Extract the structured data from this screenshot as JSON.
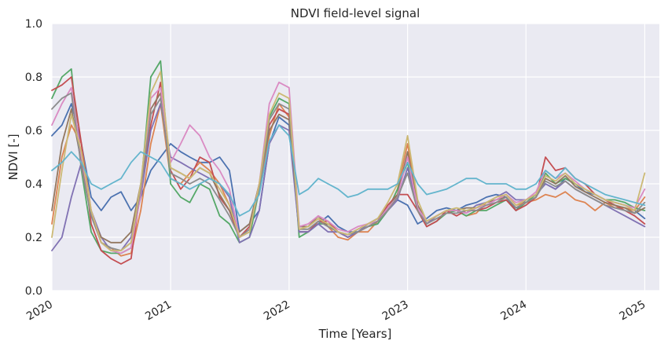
{
  "chart_data": {
    "type": "line",
    "title": "NDVI field-level signal",
    "xlabel": "Time [Years]",
    "ylabel": "NDVI [-]",
    "xlim": [
      "2020-01-01",
      "2025-02-15"
    ],
    "ylim": [
      0.0,
      1.0
    ],
    "x_ticks": [
      "2020",
      "2021",
      "2022",
      "2023",
      "2024",
      "2025"
    ],
    "y_ticks": [
      "0.0",
      "0.2",
      "0.4",
      "0.6",
      "0.8",
      "1.0"
    ],
    "grid": true,
    "legend": "none",
    "background": "#eaeaf2",
    "grid_color": "#ffffff",
    "palette": [
      "#4c72b0",
      "#dd8452",
      "#55a868",
      "#c44e52",
      "#8172b3",
      "#937860",
      "#da8bc3",
      "#8c8c8c",
      "#ccb974",
      "#64b5cd"
    ],
    "x": [
      "2020-01-01",
      "2020-02-01",
      "2020-03-01",
      "2020-04-01",
      "2020-05-01",
      "2020-06-01",
      "2020-07-01",
      "2020-08-01",
      "2020-09-01",
      "2020-10-01",
      "2020-11-01",
      "2020-12-01",
      "2021-01-01",
      "2021-02-01",
      "2021-03-01",
      "2021-04-01",
      "2021-05-01",
      "2021-06-01",
      "2021-07-01",
      "2021-08-01",
      "2021-09-01",
      "2021-10-01",
      "2021-11-01",
      "2021-12-01",
      "2022-01-01",
      "2022-02-01",
      "2022-03-01",
      "2022-04-01",
      "2022-05-01",
      "2022-06-01",
      "2022-07-01",
      "2022-08-01",
      "2022-09-01",
      "2022-10-01",
      "2022-11-01",
      "2022-12-01",
      "2023-01-01",
      "2023-02-01",
      "2023-03-01",
      "2023-04-01",
      "2023-05-01",
      "2023-06-01",
      "2023-07-01",
      "2023-08-01",
      "2023-09-01",
      "2023-10-01",
      "2023-11-01",
      "2023-12-01",
      "2024-01-01",
      "2024-02-01",
      "2024-03-01",
      "2024-04-01",
      "2024-05-01",
      "2024-06-01",
      "2024-07-01",
      "2024-08-01",
      "2024-09-01",
      "2024-10-01",
      "2024-11-01",
      "2024-12-01",
      "2025-01-01"
    ],
    "series": [
      {
        "values": [
          0.58,
          0.62,
          0.7,
          0.55,
          0.35,
          0.3,
          0.35,
          0.37,
          0.3,
          0.35,
          0.45,
          0.5,
          0.55,
          0.52,
          0.5,
          0.48,
          0.48,
          0.5,
          0.45,
          0.22,
          0.25,
          0.3,
          0.55,
          0.65,
          0.62,
          0.22,
          0.22,
          0.25,
          0.28,
          0.24,
          0.22,
          0.22,
          0.24,
          0.25,
          0.3,
          0.34,
          0.32,
          0.25,
          0.27,
          0.3,
          0.31,
          0.3,
          0.32,
          0.33,
          0.35,
          0.36,
          0.35,
          0.3,
          0.34,
          0.36,
          0.4,
          0.38,
          0.42,
          0.4,
          0.37,
          0.36,
          0.34,
          0.33,
          0.32,
          0.3,
          0.27
        ]
      },
      {
        "values": [
          0.25,
          0.5,
          0.62,
          0.55,
          0.3,
          0.18,
          0.16,
          0.13,
          0.14,
          0.3,
          0.55,
          0.7,
          0.42,
          0.4,
          0.44,
          0.48,
          0.45,
          0.4,
          0.32,
          0.2,
          0.22,
          0.38,
          0.58,
          0.7,
          0.65,
          0.24,
          0.24,
          0.27,
          0.24,
          0.2,
          0.19,
          0.22,
          0.22,
          0.26,
          0.3,
          0.38,
          0.55,
          0.32,
          0.25,
          0.28,
          0.3,
          0.3,
          0.28,
          0.29,
          0.33,
          0.34,
          0.36,
          0.32,
          0.33,
          0.34,
          0.36,
          0.35,
          0.37,
          0.34,
          0.33,
          0.3,
          0.33,
          0.31,
          0.31,
          0.3,
          0.35
        ]
      },
      {
        "values": [
          0.72,
          0.8,
          0.83,
          0.45,
          0.22,
          0.15,
          0.14,
          0.14,
          0.16,
          0.38,
          0.8,
          0.86,
          0.4,
          0.35,
          0.33,
          0.4,
          0.38,
          0.28,
          0.25,
          0.18,
          0.2,
          0.38,
          0.65,
          0.72,
          0.7,
          0.2,
          0.22,
          0.25,
          0.25,
          0.22,
          0.2,
          0.22,
          0.24,
          0.25,
          0.3,
          0.38,
          0.48,
          0.3,
          0.24,
          0.26,
          0.29,
          0.3,
          0.28,
          0.3,
          0.3,
          0.32,
          0.34,
          0.3,
          0.33,
          0.36,
          0.44,
          0.4,
          0.42,
          0.4,
          0.38,
          0.36,
          0.34,
          0.34,
          0.33,
          0.31,
          0.3
        ]
      },
      {
        "values": [
          0.75,
          0.77,
          0.8,
          0.55,
          0.25,
          0.15,
          0.12,
          0.1,
          0.12,
          0.38,
          0.62,
          0.78,
          0.45,
          0.38,
          0.42,
          0.5,
          0.48,
          0.35,
          0.3,
          0.2,
          0.24,
          0.4,
          0.62,
          0.68,
          0.66,
          0.22,
          0.22,
          0.26,
          0.26,
          0.22,
          0.2,
          0.22,
          0.24,
          0.26,
          0.32,
          0.36,
          0.36,
          0.3,
          0.24,
          0.26,
          0.3,
          0.28,
          0.3,
          0.3,
          0.31,
          0.33,
          0.34,
          0.3,
          0.32,
          0.35,
          0.5,
          0.45,
          0.46,
          0.42,
          0.4,
          0.36,
          0.34,
          0.32,
          0.3,
          0.28,
          0.25
        ]
      },
      {
        "values": [
          0.15,
          0.2,
          0.35,
          0.48,
          0.3,
          0.2,
          0.15,
          0.15,
          0.2,
          0.35,
          0.6,
          0.7,
          0.5,
          0.48,
          0.46,
          0.44,
          0.42,
          0.4,
          0.35,
          0.18,
          0.2,
          0.3,
          0.55,
          0.62,
          0.6,
          0.22,
          0.22,
          0.25,
          0.22,
          0.22,
          0.2,
          0.22,
          0.25,
          0.27,
          0.3,
          0.34,
          0.46,
          0.32,
          0.25,
          0.28,
          0.3,
          0.3,
          0.29,
          0.32,
          0.33,
          0.35,
          0.37,
          0.34,
          0.34,
          0.36,
          0.4,
          0.38,
          0.41,
          0.38,
          0.36,
          0.34,
          0.32,
          0.3,
          0.28,
          0.26,
          0.24
        ]
      },
      {
        "values": [
          0.3,
          0.55,
          0.68,
          0.48,
          0.28,
          0.2,
          0.18,
          0.18,
          0.22,
          0.4,
          0.68,
          0.74,
          0.46,
          0.44,
          0.42,
          0.46,
          0.44,
          0.36,
          0.3,
          0.22,
          0.25,
          0.4,
          0.6,
          0.66,
          0.64,
          0.24,
          0.24,
          0.28,
          0.24,
          0.22,
          0.21,
          0.23,
          0.25,
          0.27,
          0.31,
          0.36,
          0.52,
          0.32,
          0.26,
          0.28,
          0.3,
          0.3,
          0.31,
          0.31,
          0.33,
          0.34,
          0.35,
          0.31,
          0.33,
          0.35,
          0.42,
          0.4,
          0.43,
          0.39,
          0.37,
          0.35,
          0.33,
          0.32,
          0.31,
          0.29,
          0.31
        ]
      },
      {
        "values": [
          0.62,
          0.7,
          0.76,
          0.5,
          0.3,
          0.18,
          0.15,
          0.14,
          0.16,
          0.36,
          0.72,
          0.76,
          0.48,
          0.55,
          0.62,
          0.58,
          0.5,
          0.45,
          0.38,
          0.2,
          0.22,
          0.4,
          0.7,
          0.78,
          0.76,
          0.24,
          0.25,
          0.28,
          0.26,
          0.23,
          0.22,
          0.24,
          0.25,
          0.26,
          0.31,
          0.35,
          0.5,
          0.31,
          0.26,
          0.28,
          0.3,
          0.3,
          0.29,
          0.31,
          0.32,
          0.34,
          0.36,
          0.33,
          0.34,
          0.37,
          0.45,
          0.42,
          0.44,
          0.41,
          0.38,
          0.36,
          0.34,
          0.33,
          0.32,
          0.31,
          0.38
        ]
      },
      {
        "values": [
          0.68,
          0.72,
          0.74,
          0.46,
          0.28,
          0.18,
          0.16,
          0.15,
          0.18,
          0.38,
          0.66,
          0.72,
          0.44,
          0.42,
          0.4,
          0.42,
          0.4,
          0.34,
          0.28,
          0.2,
          0.23,
          0.38,
          0.64,
          0.7,
          0.68,
          0.23,
          0.23,
          0.26,
          0.24,
          0.22,
          0.21,
          0.22,
          0.24,
          0.26,
          0.3,
          0.35,
          0.44,
          0.3,
          0.25,
          0.27,
          0.29,
          0.29,
          0.3,
          0.3,
          0.32,
          0.33,
          0.35,
          0.31,
          0.33,
          0.35,
          0.41,
          0.39,
          0.41,
          0.38,
          0.36,
          0.34,
          0.32,
          0.31,
          0.3,
          0.29,
          0.33
        ]
      },
      {
        "values": [
          0.2,
          0.45,
          0.66,
          0.52,
          0.3,
          0.18,
          0.15,
          0.15,
          0.18,
          0.4,
          0.74,
          0.82,
          0.46,
          0.44,
          0.42,
          0.46,
          0.44,
          0.38,
          0.32,
          0.2,
          0.22,
          0.4,
          0.66,
          0.74,
          0.72,
          0.23,
          0.24,
          0.27,
          0.25,
          0.22,
          0.21,
          0.23,
          0.25,
          0.27,
          0.33,
          0.4,
          0.58,
          0.34,
          0.26,
          0.28,
          0.3,
          0.31,
          0.3,
          0.31,
          0.33,
          0.35,
          0.36,
          0.32,
          0.34,
          0.36,
          0.43,
          0.41,
          0.44,
          0.4,
          0.38,
          0.36,
          0.34,
          0.33,
          0.32,
          0.3,
          0.44
        ]
      },
      {
        "values": [
          0.45,
          0.48,
          0.52,
          0.48,
          0.4,
          0.38,
          0.4,
          0.42,
          0.48,
          0.52,
          0.5,
          0.48,
          0.42,
          0.4,
          0.38,
          0.4,
          0.42,
          0.4,
          0.36,
          0.28,
          0.3,
          0.36,
          0.56,
          0.62,
          0.58,
          0.36,
          0.38,
          0.42,
          0.4,
          0.38,
          0.35,
          0.36,
          0.38,
          0.38,
          0.38,
          0.4,
          0.48,
          0.4,
          0.36,
          0.37,
          0.38,
          0.4,
          0.42,
          0.42,
          0.4,
          0.4,
          0.4,
          0.38,
          0.38,
          0.4,
          0.45,
          0.42,
          0.46,
          0.42,
          0.4,
          0.38,
          0.36,
          0.35,
          0.34,
          0.33,
          0.32
        ]
      }
    ]
  }
}
